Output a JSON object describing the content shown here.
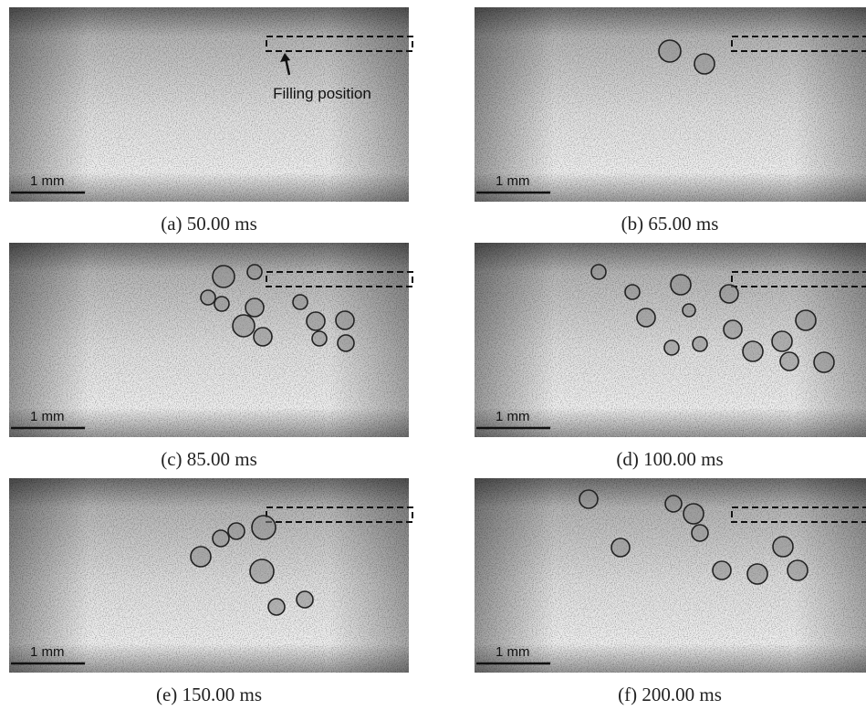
{
  "annotation": "Filling position",
  "panels": [
    {
      "caption": "(a) 50.00 ms",
      "scale_label": "1 mm"
    },
    {
      "caption": "(b) 65.00 ms",
      "scale_label": "1 mm"
    },
    {
      "caption": "(c) 85.00 ms",
      "scale_label": "1 mm"
    },
    {
      "caption": "(d) 100.00 ms",
      "scale_label": "1 mm"
    },
    {
      "caption": "(e) 150.00 ms",
      "scale_label": "1 mm"
    },
    {
      "caption": "(f) 200.00 ms",
      "scale_label": "1 mm"
    }
  ]
}
